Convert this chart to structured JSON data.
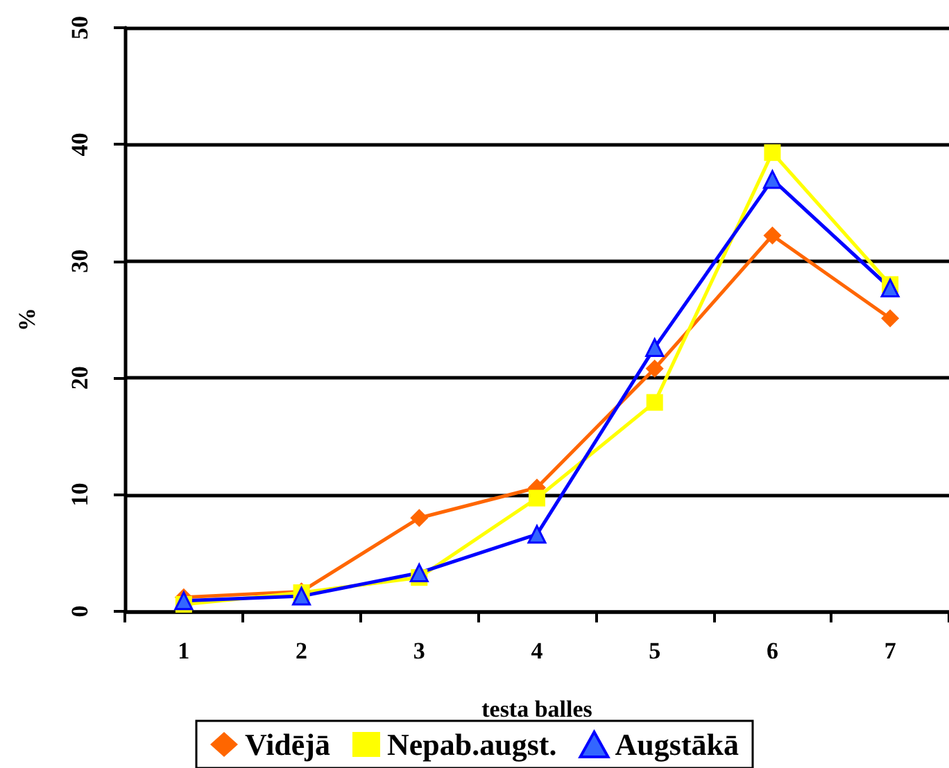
{
  "chart_data": {
    "type": "line",
    "xlabel": "testa balles",
    "ylabel": "%",
    "categories": [
      "1",
      "2",
      "3",
      "4",
      "5",
      "6",
      "7"
    ],
    "series": [
      {
        "name": "Vidējā",
        "color": "#ff6600",
        "marker": "diamond",
        "values": [
          1.2,
          1.7,
          8.0,
          10.6,
          20.8,
          32.2,
          25.1
        ]
      },
      {
        "name": "Nepab.augst.",
        "color": "#ffff00",
        "marker": "square",
        "values": [
          0.6,
          1.6,
          2.9,
          9.7,
          17.9,
          39.3,
          28.0
        ]
      },
      {
        "name": "Augstākā",
        "color": "#0000ff",
        "marker": "triangle",
        "values": [
          0.9,
          1.3,
          3.3,
          6.6,
          22.6,
          37.0,
          27.7
        ]
      }
    ],
    "ylim": [
      0,
      50
    ],
    "yticks": [
      0,
      10,
      20,
      30,
      40,
      50
    ],
    "grid": "y",
    "legend": "bottom",
    "line_style": "solid"
  }
}
